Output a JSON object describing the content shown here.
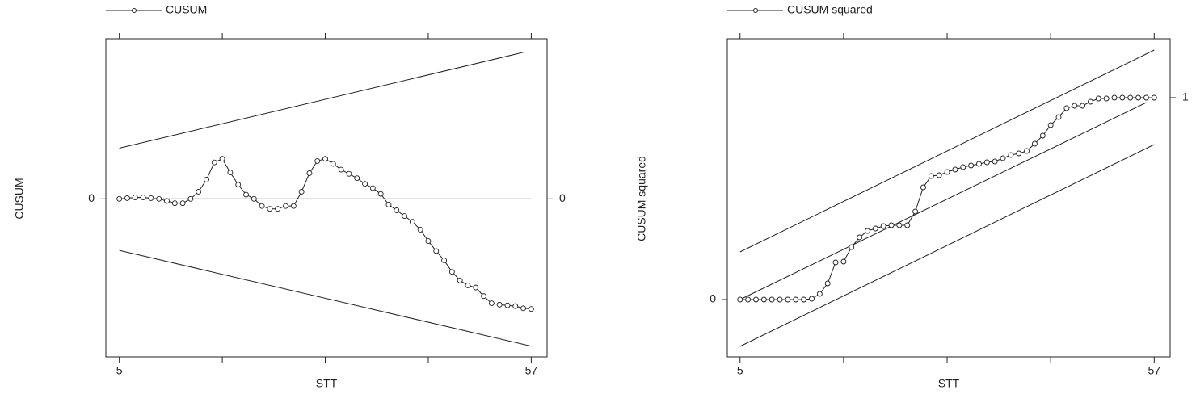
{
  "chart_data": [
    {
      "type": "line",
      "x_label": "STT",
      "y_label": "CUSUM",
      "x": [
        5,
        6,
        7,
        8,
        9,
        10,
        11,
        12,
        13,
        14,
        15,
        16,
        17,
        18,
        19,
        20,
        21,
        22,
        23,
        24,
        25,
        26,
        27,
        28,
        29,
        30,
        31,
        32,
        33,
        34,
        35,
        36,
        37,
        38,
        39,
        40,
        41,
        42,
        43,
        44,
        45,
        46,
        47,
        48,
        49,
        50,
        51,
        52,
        53,
        54,
        55,
        56,
        57
      ],
      "series": [
        {
          "name": "CUSUM",
          "color": "#222222",
          "values": [
            0,
            0.1,
            0.2,
            0.2,
            0.1,
            0,
            -0.3,
            -0.6,
            -0.6,
            0,
            1.0,
            2.7,
            5.1,
            5.6,
            3.7,
            2.0,
            0.6,
            0,
            -1.0,
            -1.4,
            -1.4,
            -1.0,
            -1.0,
            1.0,
            3.6,
            5.3,
            5.6,
            4.9,
            4.1,
            3.5,
            2.9,
            2.1,
            1.5,
            0.7,
            -0.8,
            -1.6,
            -2.4,
            -3.2,
            -4.3,
            -5.9,
            -7.3,
            -8.6,
            -10.2,
            -11.4,
            -12.1,
            -12.4,
            -13.6,
            -14.6,
            -14.8,
            -14.9,
            -15.0,
            -15.3,
            -15.4
          ]
        }
      ],
      "bounds": [
        {
          "x": [
            5,
            56
          ],
          "values": [
            7.1,
            20.5
          ]
        },
        {
          "x": [
            5,
            57
          ],
          "values": [
            -7.2,
            -20.6
          ]
        }
      ],
      "xlim": [
        3.3,
        59
      ],
      "ylim": [
        -22.1,
        22.4
      ],
      "y2lim": [
        -22.1,
        22.4
      ],
      "xticks": [
        5,
        {
          "value": 18,
          "label": null
        },
        {
          "value": 31,
          "label": null
        },
        {
          "value": 44,
          "label": null
        },
        57
      ],
      "yticks": [
        0
      ],
      "y2ticks": [
        0
      ],
      "grid": true
    },
    {
      "type": "line",
      "x_label": "STT",
      "y_label": "CUSUM squared",
      "x": [
        5,
        6,
        7,
        8,
        9,
        10,
        11,
        12,
        13,
        14,
        15,
        16,
        17,
        18,
        19,
        20,
        21,
        22,
        23,
        24,
        25,
        26,
        27,
        28,
        29,
        30,
        31,
        32,
        33,
        34,
        35,
        36,
        37,
        38,
        39,
        40,
        41,
        42,
        43,
        44,
        45,
        46,
        47,
        48,
        49,
        50,
        51,
        52,
        53,
        54,
        55,
        56,
        57
      ],
      "series": [
        {
          "name": "CUSUM squared",
          "color": "#222222",
          "values": [
            0,
            0,
            0,
            0,
            0,
            0,
            0,
            0,
            0,
            0.004,
            0.028,
            0.08,
            0.184,
            0.188,
            0.26,
            0.308,
            0.34,
            0.352,
            0.364,
            0.368,
            0.368,
            0.368,
            0.436,
            0.556,
            0.612,
            0.616,
            0.632,
            0.644,
            0.656,
            0.664,
            0.672,
            0.68,
            0.684,
            0.7,
            0.716,
            0.724,
            0.736,
            0.772,
            0.812,
            0.864,
            0.904,
            0.948,
            0.96,
            0.96,
            0.98,
            0.996,
            0.996,
            1,
            1,
            1,
            1,
            1,
            1
          ]
        }
      ],
      "bounds": [
        {
          "x": [
            5,
            57
          ],
          "values": [
            0.236,
            1.236
          ]
        },
        {
          "x": [
            5,
            56
          ],
          "values": [
            0,
            0.976
          ]
        },
        {
          "x": [
            5,
            57
          ],
          "values": [
            -0.232,
            0.768
          ]
        }
      ],
      "xlim": [
        3.4,
        59
      ],
      "ylim": [
        -0.284,
        1.292
      ],
      "y2lim": [
        -0.284,
        1.292
      ],
      "xticks": [
        5,
        {
          "value": 18,
          "label": null
        },
        {
          "value": 31,
          "label": null
        },
        {
          "value": 44,
          "label": null
        },
        57
      ],
      "yticks": [
        0
      ],
      "y2ticks": [
        1
      ],
      "grid": false
    }
  ]
}
